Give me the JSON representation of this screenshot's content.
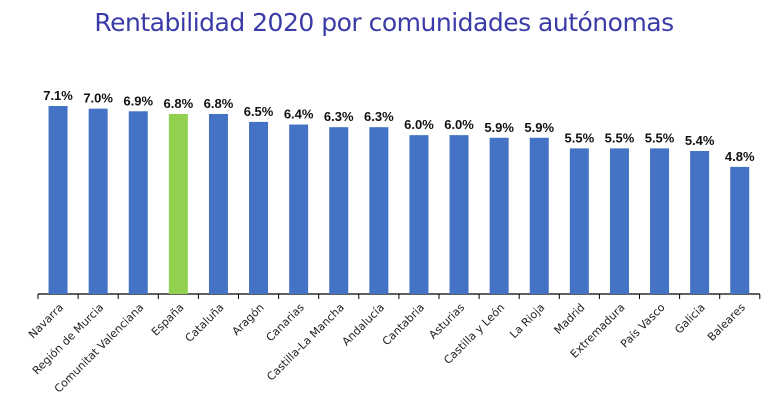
{
  "chart_data": {
    "type": "bar",
    "title": "Rentabilidad 2020 por comunidades autónomas",
    "categories": [
      "Navarra",
      "Región de Murcia",
      "Comunitat Valenciana",
      "España",
      "Cataluña",
      "Aragón",
      "Canarias",
      "Castilla-La Mancha",
      "Andalucía",
      "Cantabria",
      "Asturias",
      "Castilla y León",
      "La Rioja",
      "Madrid",
      "Extremadura",
      "País Vasco",
      "Galicia",
      "Baleares"
    ],
    "values": [
      7.1,
      7.0,
      6.9,
      6.8,
      6.8,
      6.5,
      6.4,
      6.3,
      6.3,
      6.0,
      6.0,
      5.9,
      5.9,
      5.5,
      5.5,
      5.5,
      5.4,
      4.8
    ],
    "data_labels": [
      "7.1%",
      "7.0%",
      "6.9%",
      "6.8%",
      "6.8%",
      "6.5%",
      "6.4%",
      "6.3%",
      "6.3%",
      "6.0%",
      "6.0%",
      "5.9%",
      "5.9%",
      "5.5%",
      "5.5%",
      "5.5%",
      "5.4%",
      "4.8%"
    ],
    "highlight_index": 3,
    "ylim": [
      0,
      7.1
    ],
    "xlabel": "",
    "ylabel": "",
    "colors": {
      "bar": "#4472c4",
      "highlight": "#92d050",
      "axis": "#000000"
    }
  }
}
